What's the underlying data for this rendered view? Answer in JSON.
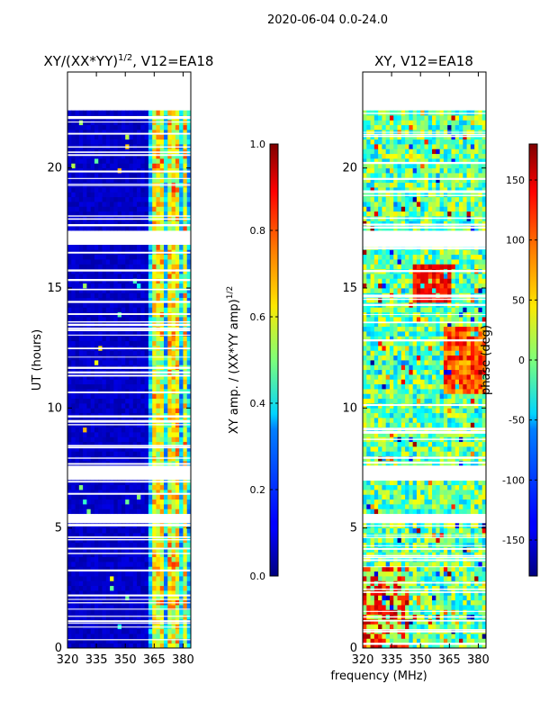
{
  "figure_title": "2020-06-04 0.0-24.0",
  "shared_xlabel": "frequency (MHz)",
  "chart_data": [
    {
      "type": "heatmap",
      "title": "XY/(XX*YY)",
      "title_superscript": "1/2",
      "title_suffix": ", V12=EA18",
      "ylabel": "UT (hours)",
      "xlim": [
        320,
        384
      ],
      "ylim": [
        0,
        24
      ],
      "xticks": [
        "320",
        "335",
        "350",
        "365",
        "380"
      ],
      "yticks": [
        "0",
        "5",
        "10",
        "15",
        "20"
      ],
      "colorbar": {
        "label": "XY amp. / (XX*YY amp)",
        "label_superscript": "1/2",
        "range": [
          0.0,
          1.0
        ],
        "ticks": [
          "0.0",
          "0.2",
          "0.4",
          "0.6",
          "0.8",
          "1.0"
        ],
        "colormap": "jet"
      },
      "data_gaps_hours": [
        [
          22.5,
          24.0
        ],
        [
          16.9,
          17.4
        ],
        [
          7.0,
          7.5
        ],
        [
          5.3,
          5.5
        ]
      ],
      "note": "amplitude mostly near 0 below 362 MHz; elevated 0.3-0.7 in bands around 362-384 MHz"
    },
    {
      "type": "heatmap",
      "title": "XY, V12=EA18",
      "ylabel": "",
      "xlim": [
        320,
        384
      ],
      "ylim": [
        0,
        24
      ],
      "xticks": [
        "320",
        "335",
        "350",
        "365",
        "380"
      ],
      "yticks": [
        "0",
        "5",
        "10",
        "15",
        "20"
      ],
      "colorbar": {
        "label": "phase (deg)",
        "range": [
          -180,
          180
        ],
        "ticks": [
          "-150",
          "-100",
          "-50",
          "0",
          "50",
          "100",
          "150"
        ],
        "colormap": "jet"
      },
      "data_gaps_hours": [
        [
          22.5,
          24.0
        ],
        [
          16.9,
          17.4
        ],
        [
          7.0,
          7.5
        ],
        [
          5.3,
          5.5
        ]
      ],
      "note": "phase noisy; ~90-150 deg between 14.5-16 h at 350-365 MHz"
    }
  ]
}
